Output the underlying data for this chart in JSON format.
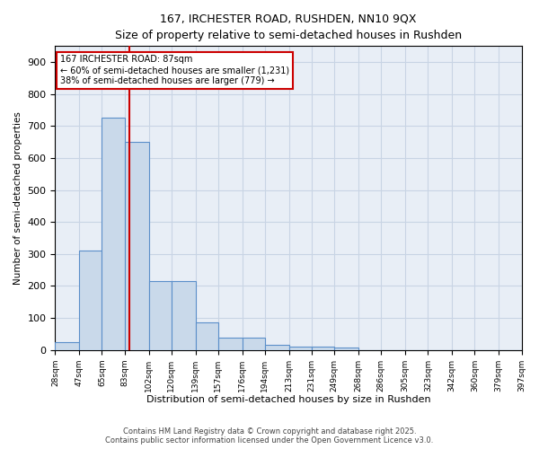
{
  "title_line1": "167, IRCHESTER ROAD, RUSHDEN, NN10 9QX",
  "title_line2": "Size of property relative to semi-detached houses in Rushden",
  "xlabel": "Distribution of semi-detached houses by size in Rushden",
  "ylabel": "Number of semi-detached properties",
  "bar_values": [
    25,
    310,
    725,
    650,
    215,
    215,
    85,
    38,
    38,
    15,
    10,
    10,
    8,
    0,
    0,
    0,
    0,
    0,
    0,
    0
  ],
  "bin_edges": [
    28,
    47,
    65,
    83,
    102,
    120,
    139,
    157,
    176,
    194,
    213,
    231,
    249,
    268,
    286,
    305,
    323,
    342,
    360,
    379,
    397
  ],
  "bin_labels": [
    "28sqm",
    "47sqm",
    "65sqm",
    "83sqm",
    "102sqm",
    "120sqm",
    "139sqm",
    "157sqm",
    "176sqm",
    "194sqm",
    "213sqm",
    "231sqm",
    "249sqm",
    "268sqm",
    "286sqm",
    "305sqm",
    "323sqm",
    "342sqm",
    "360sqm",
    "379sqm",
    "397sqm"
  ],
  "bar_color": "#c9d9ea",
  "bar_edge_color": "#5b8fc9",
  "vline_x": 87,
  "vline_color": "#cc0000",
  "annotation_line1": "167 IRCHESTER ROAD: 87sqm",
  "annotation_line2": "← 60% of semi-detached houses are smaller (1,231)",
  "annotation_line3": "38% of semi-detached houses are larger (779) →",
  "annotation_box_fc": "#ffffff",
  "annotation_box_ec": "#cc0000",
  "grid_color": "#c8d4e4",
  "bg_color": "#e8eef6",
  "ylim": [
    0,
    950
  ],
  "yticks": [
    0,
    100,
    200,
    300,
    400,
    500,
    600,
    700,
    800,
    900
  ],
  "footer_line1": "Contains HM Land Registry data © Crown copyright and database right 2025.",
  "footer_line2": "Contains public sector information licensed under the Open Government Licence v3.0."
}
